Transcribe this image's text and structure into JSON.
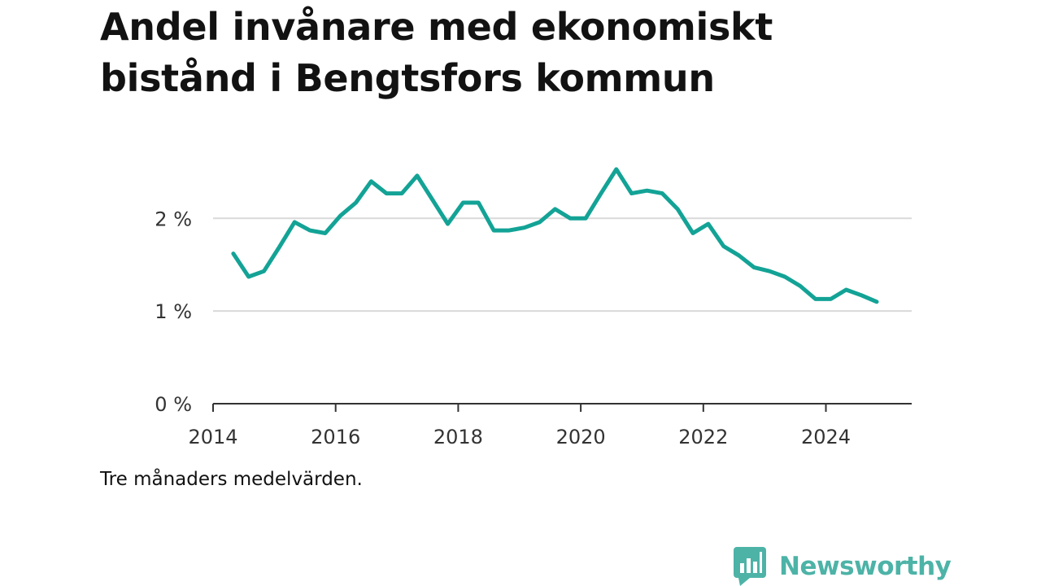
{
  "title": "Andel invånare med ekonomiskt bistånd i Bengtsfors kommun",
  "note": "Tre månaders medelvärden.",
  "brand": {
    "name": "Newsworthy",
    "icon": "chart-bubble-icon",
    "color": "#4db3a7"
  },
  "colors": {
    "line": "#13a396",
    "grid": "#d9d9d9",
    "axis": "#333333"
  },
  "chart_data": {
    "type": "line",
    "title": "Andel invånare med ekonomiskt bistånd i Bengtsfors kommun",
    "xlabel": "",
    "ylabel": "",
    "x_ticks": [
      "2014",
      "2016",
      "2018",
      "2020",
      "2022",
      "2024"
    ],
    "y_ticks": [
      "0 %",
      "1 %",
      "2 %"
    ],
    "y_tick_values": [
      0,
      1,
      2
    ],
    "xlim": [
      2014.0,
      2025.4
    ],
    "ylim": [
      0,
      2.6
    ],
    "grid": true,
    "legend": "none",
    "series": [
      {
        "x": [
          2014.33,
          2014.58,
          2014.83,
          2015.08,
          2015.33,
          2015.58,
          2015.83,
          2016.08,
          2016.33,
          2016.58,
          2016.83,
          2017.08,
          2017.33,
          2017.58,
          2017.83,
          2018.08,
          2018.33,
          2018.58,
          2018.83,
          2019.08,
          2019.33,
          2019.58,
          2019.83,
          2020.08,
          2020.33,
          2020.58,
          2020.83,
          2021.08,
          2021.33,
          2021.58,
          2021.83,
          2022.08,
          2022.33,
          2022.58,
          2022.83,
          2023.08,
          2023.33,
          2023.58,
          2023.83,
          2024.08,
          2024.33,
          2024.58,
          2024.83
        ],
        "values": [
          1.62,
          1.37,
          1.43,
          1.69,
          1.96,
          1.87,
          1.84,
          2.03,
          2.17,
          2.4,
          2.27,
          2.27,
          2.46,
          2.2,
          1.94,
          2.17,
          2.17,
          1.87,
          1.87,
          1.9,
          1.96,
          2.1,
          2.0,
          2.0,
          2.27,
          2.53,
          2.27,
          2.3,
          2.27,
          2.1,
          1.84,
          1.94,
          1.7,
          1.6,
          1.47,
          1.43,
          1.37,
          1.27,
          1.13,
          1.13,
          1.23,
          1.17,
          1.1
        ]
      }
    ]
  }
}
